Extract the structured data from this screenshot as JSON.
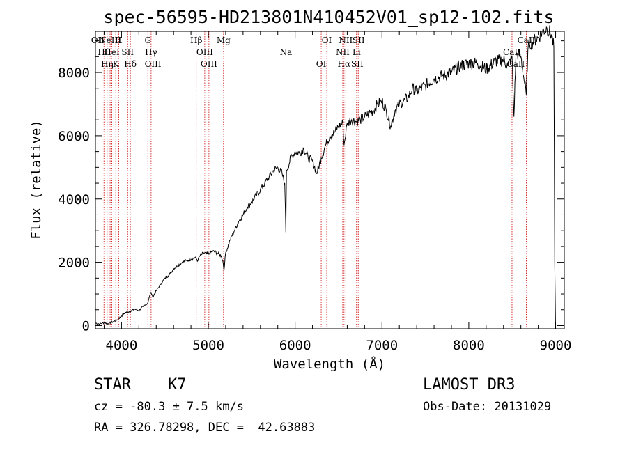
{
  "chart_data": {
    "type": "line",
    "title": "spec-56595-HD213801N410452V01_sp12-102.fits",
    "xlabel": "Wavelength (Å)",
    "ylabel": "Flux (relative)",
    "xlim": [
      3700,
      9100
    ],
    "ylim": [
      -100,
      9300
    ],
    "x_ticks": [
      4000,
      5000,
      6000,
      7000,
      8000,
      9000
    ],
    "y_ticks": [
      0,
      2000,
      4000,
      6000,
      8000
    ],
    "series": [
      {
        "name": "flux",
        "x": [
          3700,
          3750,
          3800,
          3850,
          3900,
          3950,
          4000,
          4050,
          4100,
          4150,
          4200,
          4250,
          4300,
          4320,
          4340,
          4360,
          4400,
          4450,
          4500,
          4550,
          4600,
          4650,
          4700,
          4750,
          4800,
          4850,
          4880,
          4900,
          4950,
          5000,
          5050,
          5100,
          5150,
          5170,
          5180,
          5200,
          5250,
          5300,
          5350,
          5400,
          5450,
          5500,
          5550,
          5600,
          5650,
          5700,
          5750,
          5800,
          5850,
          5880,
          5893,
          5900,
          5950,
          6000,
          6050,
          6100,
          6150,
          6200,
          6250,
          6300,
          6350,
          6400,
          6450,
          6500,
          6550,
          6563,
          6600,
          6650,
          6700,
          6750,
          6800,
          6850,
          6900,
          6950,
          7000,
          7050,
          7100,
          7150,
          7200,
          7250,
          7300,
          7350,
          7400,
          7450,
          7500,
          7600,
          7700,
          7800,
          7900,
          8000,
          8100,
          8200,
          8300,
          8400,
          8450,
          8498,
          8520,
          8542,
          8560,
          8600,
          8662,
          8680,
          8700,
          8750,
          8800,
          8850,
          8900,
          8950,
          8980,
          8990,
          9000
        ],
        "values": [
          80,
          50,
          90,
          60,
          120,
          180,
          300,
          420,
          450,
          520,
          480,
          600,
          700,
          900,
          1050,
          900,
          1100,
          1300,
          1500,
          1600,
          1800,
          1900,
          2000,
          2050,
          2100,
          2150,
          2050,
          2200,
          2300,
          2250,
          2350,
          2300,
          2200,
          2000,
          1750,
          2300,
          2700,
          3000,
          3300,
          3500,
          3750,
          3900,
          4100,
          4300,
          4500,
          4700,
          4900,
          5000,
          4800,
          4500,
          2950,
          4900,
          5300,
          5500,
          5450,
          5600,
          5300,
          5200,
          4800,
          5300,
          5700,
          6000,
          6100,
          6300,
          6400,
          5700,
          6400,
          6500,
          6450,
          6500,
          6600,
          6700,
          6800,
          7000,
          7100,
          6800,
          6300,
          6800,
          7000,
          7100,
          7200,
          7500,
          7400,
          7500,
          7600,
          7800,
          7900,
          8000,
          8200,
          8300,
          8300,
          8100,
          8350,
          8400,
          8200,
          8500,
          6600,
          8500,
          8600,
          8500,
          7300,
          8700,
          8900,
          9000,
          9100,
          9300,
          9400,
          9200,
          8800,
          2000,
          -100
        ]
      }
    ],
    "line_markers": [
      {
        "wavelength": 3727,
        "label": "OII"
      },
      {
        "wavelength": 3798,
        "label": "Hθ"
      },
      {
        "wavelength": 3835,
        "label": "Hη"
      },
      {
        "wavelength": 3869,
        "label": "NeIII"
      },
      {
        "wavelength": 3889,
        "label": "HeI"
      },
      {
        "wavelength": 3934,
        "label": "K"
      },
      {
        "wavelength": 3968,
        "label": "H"
      },
      {
        "wavelength": 4071,
        "label": "SII"
      },
      {
        "wavelength": 4102,
        "label": "Hδ"
      },
      {
        "wavelength": 4304,
        "label": "G"
      },
      {
        "wavelength": 4341,
        "label": "Hγ"
      },
      {
        "wavelength": 4363,
        "label": "OIII"
      },
      {
        "wavelength": 4861,
        "label": "Hβ"
      },
      {
        "wavelength": 4959,
        "label": "OIII"
      },
      {
        "wavelength": 5007,
        "label": "OIII"
      },
      {
        "wavelength": 5175,
        "label": "Mg"
      },
      {
        "wavelength": 5894,
        "label": "Na"
      },
      {
        "wavelength": 6300,
        "label": "OI"
      },
      {
        "wavelength": 6364,
        "label": "OI"
      },
      {
        "wavelength": 6548,
        "label": "NII"
      },
      {
        "wavelength": 6563,
        "label": "Hα"
      },
      {
        "wavelength": 6583,
        "label": "NII"
      },
      {
        "wavelength": 6707,
        "label": "Li"
      },
      {
        "wavelength": 6716,
        "label": "SII"
      },
      {
        "wavelength": 6731,
        "label": "SII"
      },
      {
        "wavelength": 8498,
        "label": "CaII"
      },
      {
        "wavelength": 8542,
        "label": "CaII"
      },
      {
        "wavelength": 8662,
        "label": "CaII"
      }
    ],
    "line_color": "#000000",
    "marker_color": "#cc0000"
  },
  "info": {
    "class_line": "STAR    K7",
    "cz_line": "cz = -80.3 ± 7.5 km/s",
    "radec_line": "RA = 326.78298, DEC =  42.63883",
    "survey": "LAMOST DR3",
    "obs_date": "Obs-Date: 20131029"
  }
}
